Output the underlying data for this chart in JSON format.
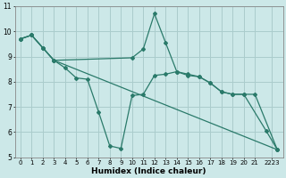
{
  "title": "",
  "xlabel": "Humidex (Indice chaleur)",
  "ylabel": "",
  "xlim": [
    -0.5,
    23.5
  ],
  "ylim": [
    5,
    11
  ],
  "yticks": [
    5,
    6,
    7,
    8,
    9,
    10,
    11
  ],
  "background_color": "#cce8e8",
  "grid_color": "#aacccc",
  "line_color": "#2a7a6a",
  "line1_x": [
    0,
    1,
    2,
    3,
    4,
    5,
    6,
    7,
    8,
    9,
    10,
    11,
    12,
    13,
    14,
    15,
    16,
    17,
    18,
    19,
    20,
    21,
    23
  ],
  "line1_y": [
    9.7,
    9.85,
    9.35,
    8.85,
    8.55,
    8.15,
    8.1,
    6.8,
    5.45,
    5.35,
    7.45,
    7.5,
    8.25,
    8.3,
    8.4,
    8.25,
    8.2,
    7.95,
    7.6,
    7.5,
    7.5,
    7.5,
    5.3
  ],
  "line2_x": [
    0,
    1,
    2,
    3,
    10,
    11,
    12,
    13,
    14,
    15,
    16,
    17,
    18,
    19,
    20,
    22,
    23
  ],
  "line2_y": [
    9.7,
    9.85,
    9.35,
    8.85,
    8.95,
    9.3,
    10.7,
    9.55,
    8.4,
    8.3,
    8.2,
    7.95,
    7.6,
    7.5,
    7.5,
    6.05,
    5.3
  ],
  "line3_x": [
    0,
    1,
    2,
    3,
    23
  ],
  "line3_y": [
    9.7,
    9.85,
    9.35,
    8.85,
    5.3
  ],
  "xtick_labels": [
    "0",
    "1",
    "2",
    "3",
    "4",
    "5",
    "6",
    "7",
    "8",
    "9",
    "10",
    "11",
    "12",
    "13",
    "14",
    "15",
    "16",
    "17",
    "18",
    "19",
    "20",
    "21",
    "2223"
  ],
  "figsize": [
    3.2,
    2.0
  ],
  "dpi": 100
}
